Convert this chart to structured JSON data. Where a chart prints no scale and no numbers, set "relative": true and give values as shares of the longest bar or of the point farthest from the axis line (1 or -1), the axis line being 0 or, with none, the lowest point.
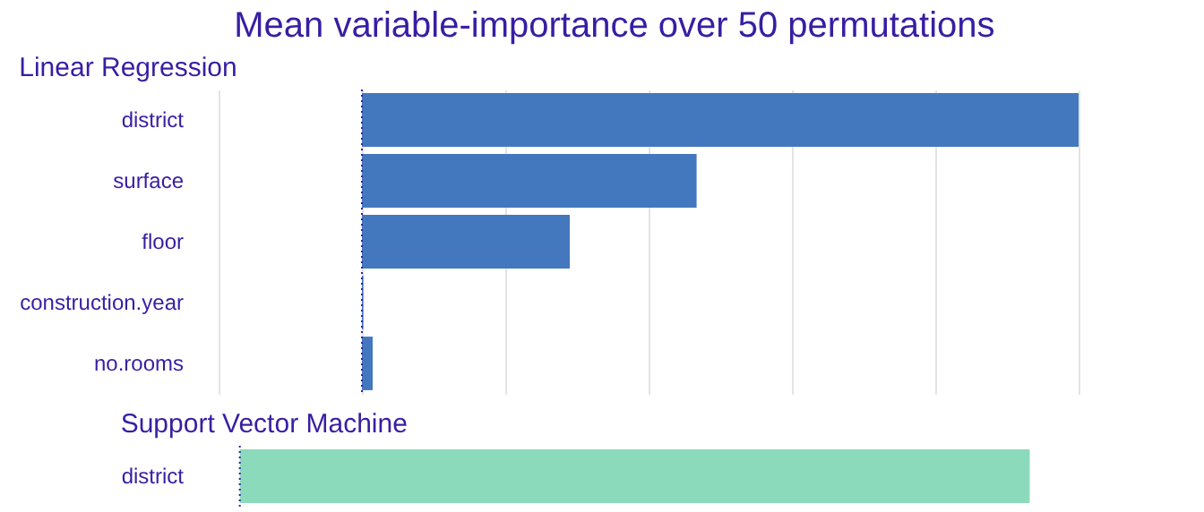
{
  "chart_data": [
    {
      "type": "bar",
      "orientation": "horizontal",
      "relative": true,
      "title": "Mean variable-importance over 50 permutations",
      "subtitle": "Linear Regression",
      "categories": [
        "district",
        "surface",
        "floor",
        "construction.year",
        "no.rooms"
      ],
      "values": [
        1,
        0.467,
        0.29,
        0.002,
        0.015
      ],
      "color": "#4378bf",
      "grid": "x",
      "tick_labels": "y"
    },
    {
      "type": "bar",
      "orientation": "horizontal",
      "relative": true,
      "title": "Support Vector Machine",
      "categories": [
        "district"
      ],
      "values": [
        1
      ],
      "color": "#8bdabc",
      "tick_labels": "y"
    }
  ]
}
